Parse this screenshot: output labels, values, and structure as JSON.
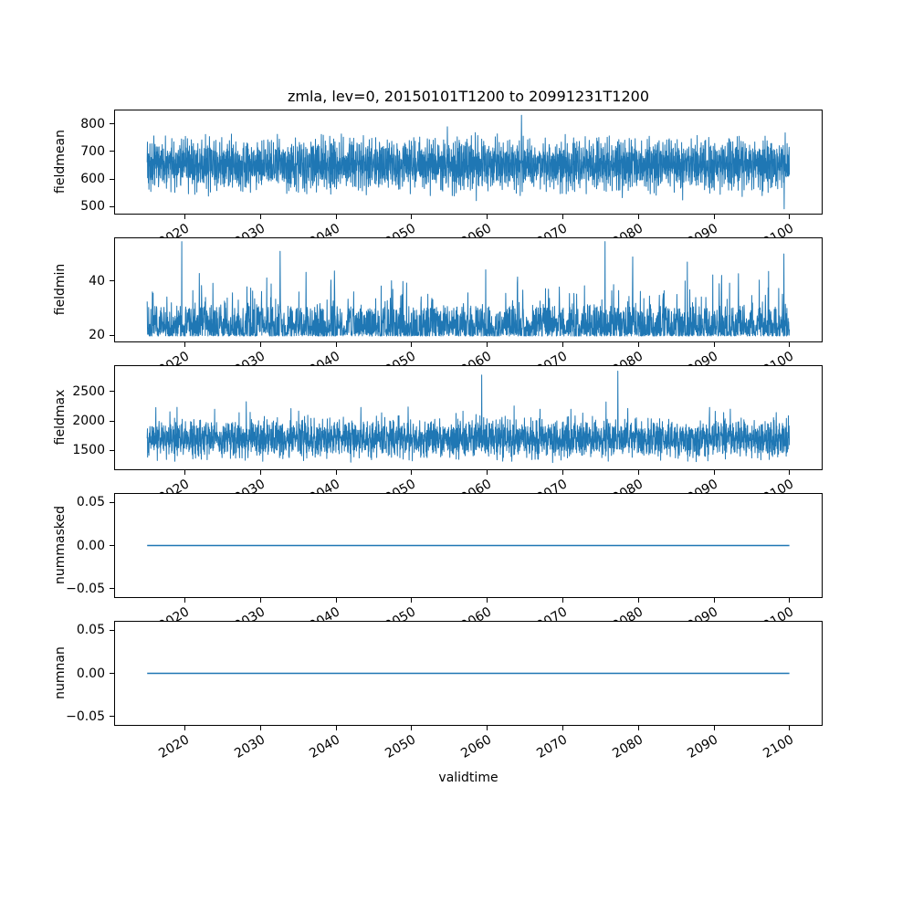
{
  "chart_data": {
    "type": "line",
    "title": "zmla, lev=0, 20150101T1200 to 20991231T1200",
    "xlabel": "validtime",
    "line_color": "#1f77b4",
    "text_color": "#000000",
    "background_color": "#ffffff",
    "grid": false,
    "legend": false,
    "x_range": [
      2015.0,
      2099.97
    ],
    "xlim": [
      2010.75,
      2104.25
    ],
    "xticks": [
      2020,
      2030,
      2040,
      2050,
      2060,
      2070,
      2080,
      2090,
      2100
    ],
    "xtick_labels": [
      "2020",
      "2030",
      "2040",
      "2050",
      "2060",
      "2070",
      "2080",
      "2090",
      "2100"
    ],
    "xtick_rotation_deg": 30,
    "subplots": [
      {
        "ylabel": "fieldmean",
        "ylim": [
          475,
          848
        ],
        "yticks": [
          500,
          600,
          700,
          800
        ],
        "ytick_labels": [
          "500",
          "600",
          "700",
          "800"
        ],
        "series": {
          "kind": "noisy",
          "seed": 42,
          "n": 2600,
          "base": 652,
          "osc1": [
            48,
            2.399963,
            0
          ],
          "osc2": [
            28,
            0.777,
            0
          ],
          "noise": 42,
          "spike_prob": 0.02,
          "spike_amp": 95,
          "spike_dir": 0,
          "clamp": [
            492,
            833
          ],
          "peaks": [
            {
              "f": 0.583,
              "v": 831
            }
          ],
          "approx_mean": 652,
          "approx_min": 492,
          "approx_max": 833
        }
      },
      {
        "ylabel": "fieldmin",
        "ylim": [
          17.8,
          55.7
        ],
        "yticks": [
          20,
          40
        ],
        "ytick_labels": [
          "20",
          "40"
        ],
        "series": {
          "kind": "floor",
          "seed": 7,
          "n": 2600,
          "floor": 19.8,
          "pow_amp": 11,
          "spike_prob": 0.12,
          "spike_amp": 13,
          "spike2_prob": 0.012,
          "spike2_amp": 24,
          "clamp": [
            19.8,
            54.5
          ],
          "peaks": [
            {
              "f": 0.713,
              "v": 54.5
            }
          ],
          "approx_mean": 25,
          "approx_min": 19.8,
          "approx_max": 54.5
        }
      },
      {
        "ylabel": "fieldmax",
        "ylim": [
          1180,
          2930
        ],
        "yticks": [
          1500,
          2000,
          2500
        ],
        "ytick_labels": [
          "1500",
          "2000",
          "2500"
        ],
        "series": {
          "kind": "noisy",
          "seed": 99,
          "n": 2600,
          "base": 1690,
          "osc1": [
            165,
            2.399963,
            0
          ],
          "osc2": [
            95,
            0.53,
            2
          ],
          "noise": 150,
          "spike_prob": 0.06,
          "spike_amp": 420,
          "spike_dir": 1,
          "clamp": [
            1290,
            2845
          ],
          "peaks": [
            {
              "f": 0.521,
              "v": 2780
            },
            {
              "f": 0.733,
              "v": 2845
            }
          ],
          "approx_mean": 1700,
          "approx_min": 1290,
          "approx_max": 2845
        }
      },
      {
        "ylabel": "nummasked",
        "ylim": [
          -0.06,
          0.06
        ],
        "yticks": [
          -0.05,
          0,
          0.05
        ],
        "ytick_labels": [
          "−0.05",
          "0.00",
          "0.05"
        ],
        "series": {
          "kind": "constant",
          "value": 0
        }
      },
      {
        "ylabel": "numnan",
        "ylim": [
          -0.06,
          0.06
        ],
        "yticks": [
          -0.05,
          0,
          0.05
        ],
        "ytick_labels": [
          "−0.05",
          "0.00",
          "0.05"
        ],
        "series": {
          "kind": "constant",
          "value": 0
        }
      }
    ]
  }
}
